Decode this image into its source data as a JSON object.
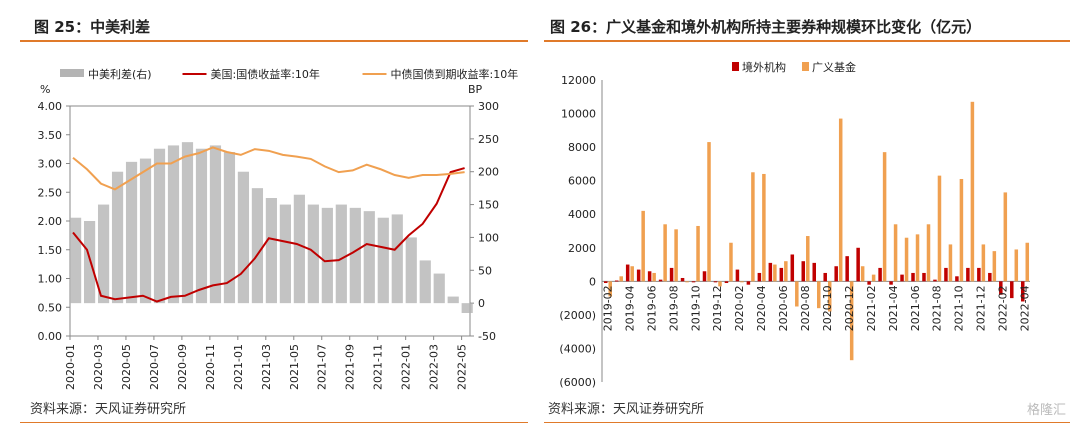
{
  "charts": [
    {
      "title": "图 25：中美利差",
      "source": "资料来源：天风证券研究所",
      "chart_data": {
        "type": "line",
        "title": "图 25：中美利差",
        "y_left_unit": "%",
        "y_right_unit": "BP",
        "y_left_ticks": [
          "0.00",
          "0.50",
          "1.00",
          "1.50",
          "2.00",
          "2.50",
          "3.00",
          "3.50",
          "4.00"
        ],
        "y_right_ticks": [
          "-50",
          "0",
          "50",
          "100",
          "150",
          "200",
          "250",
          "300"
        ],
        "x_ticks": [
          "2020-01",
          "2020-03",
          "2020-05",
          "2020-07",
          "2020-09",
          "2020-11",
          "2021-01",
          "2021-03",
          "2021-05",
          "2021-07",
          "2021-09",
          "2021-11",
          "2022-01",
          "2022-03",
          "2022-05"
        ],
        "ylim_left": [
          0,
          4
        ],
        "ylim_right": [
          -50,
          300
        ],
        "legend": "top",
        "series": [
          {
            "name": "中美利差(右)",
            "axis": "right",
            "kind": "bar",
            "color": "#b4b4b4",
            "x": [
              "2020-01",
              "2020-02",
              "2020-03",
              "2020-04",
              "2020-05",
              "2020-06",
              "2020-07",
              "2020-08",
              "2020-09",
              "2020-10",
              "2020-11",
              "2020-12",
              "2021-01",
              "2021-02",
              "2021-03",
              "2021-04",
              "2021-05",
              "2021-06",
              "2021-07",
              "2021-08",
              "2021-09",
              "2021-10",
              "2021-11",
              "2021-12",
              "2022-01",
              "2022-02",
              "2022-03",
              "2022-04",
              "2022-05"
            ],
            "values": [
              130,
              125,
              150,
              200,
              215,
              220,
              235,
              240,
              245,
              235,
              240,
              230,
              200,
              175,
              160,
              150,
              165,
              150,
              145,
              150,
              145,
              140,
              130,
              135,
              100,
              65,
              45,
              10,
              -15
            ]
          },
          {
            "name": "美国:国债收益率:10年",
            "axis": "left",
            "kind": "line",
            "color": "#c00000",
            "x": [
              "2020-01",
              "2020-02",
              "2020-03",
              "2020-04",
              "2020-05",
              "2020-06",
              "2020-07",
              "2020-08",
              "2020-09",
              "2020-10",
              "2020-11",
              "2020-12",
              "2021-01",
              "2021-02",
              "2021-03",
              "2021-04",
              "2021-05",
              "2021-06",
              "2021-07",
              "2021-08",
              "2021-09",
              "2021-10",
              "2021-11",
              "2021-12",
              "2022-01",
              "2022-02",
              "2022-03",
              "2022-04",
              "2022-05"
            ],
            "values": [
              1.8,
              1.5,
              0.7,
              0.64,
              0.67,
              0.7,
              0.6,
              0.68,
              0.7,
              0.8,
              0.88,
              0.92,
              1.08,
              1.35,
              1.7,
              1.65,
              1.6,
              1.5,
              1.3,
              1.32,
              1.45,
              1.6,
              1.55,
              1.5,
              1.75,
              1.95,
              2.3,
              2.85,
              2.92
            ]
          },
          {
            "name": "中债国债到期收益率:10年",
            "axis": "left",
            "kind": "line",
            "color": "#f0a050",
            "x": [
              "2020-01",
              "2020-02",
              "2020-03",
              "2020-04",
              "2020-05",
              "2020-06",
              "2020-07",
              "2020-08",
              "2020-09",
              "2020-10",
              "2020-11",
              "2020-12",
              "2021-01",
              "2021-02",
              "2021-03",
              "2021-04",
              "2021-05",
              "2021-06",
              "2021-07",
              "2021-08",
              "2021-09",
              "2021-10",
              "2021-11",
              "2021-12",
              "2022-01",
              "2022-02",
              "2022-03",
              "2022-04",
              "2022-05"
            ],
            "values": [
              3.1,
              2.9,
              2.65,
              2.55,
              2.7,
              2.85,
              3.0,
              3.0,
              3.12,
              3.18,
              3.28,
              3.2,
              3.15,
              3.25,
              3.22,
              3.15,
              3.12,
              3.08,
              2.95,
              2.85,
              2.88,
              2.98,
              2.9,
              2.8,
              2.75,
              2.8,
              2.8,
              2.82,
              2.85
            ]
          }
        ]
      }
    },
    {
      "title": "图 26：广义基金和境外机构所持主要券种规模环比变化（亿元）",
      "source": "资料来源：天风证券研究所",
      "chart_data": {
        "type": "bar",
        "title": "图 26：广义基金和境外机构所持主要券种规模环比变化（亿元）",
        "y_ticks": [
          "12000",
          "10000",
          "8000",
          "6000",
          "4000",
          "2000",
          "0",
          "(2000)",
          "(4000)",
          "(6000)"
        ],
        "ylim": [
          -6000,
          12000
        ],
        "legend": "top",
        "x_tick_labels": [
          "2019-02",
          "2019-04",
          "2019-06",
          "2019-08",
          "2019-10",
          "2019-12",
          "2020-02",
          "2020-04",
          "2020-06",
          "2020-08",
          "2020-10",
          "2020-12",
          "2021-02",
          "2021-04",
          "2021-06",
          "2021-08",
          "2021-10",
          "2021-12",
          "2022-02",
          "2022-04"
        ],
        "categories": [
          "2019-02",
          "2019-03",
          "2019-04",
          "2019-05",
          "2019-06",
          "2019-07",
          "2019-08",
          "2019-09",
          "2019-10",
          "2019-11",
          "2019-12",
          "2020-01",
          "2020-02",
          "2020-03",
          "2020-04",
          "2020-05",
          "2020-06",
          "2020-07",
          "2020-08",
          "2020-09",
          "2020-10",
          "2020-11",
          "2020-12",
          "2021-01",
          "2021-02",
          "2021-03",
          "2021-04",
          "2021-05",
          "2021-06",
          "2021-07",
          "2021-08",
          "2021-09",
          "2021-10",
          "2021-11",
          "2021-12",
          "2022-01",
          "2022-02",
          "2022-03",
          "2022-04"
        ],
        "series": [
          {
            "name": "境外机构",
            "color": "#c00000",
            "values": [
              -100,
              50,
              1000,
              700,
              600,
              100,
              800,
              200,
              0,
              600,
              0,
              -100,
              700,
              -200,
              500,
              1100,
              800,
              1600,
              1200,
              1100,
              500,
              900,
              1500,
              2000,
              -200,
              800,
              -200,
              400,
              500,
              500,
              100,
              800,
              300,
              800,
              800,
              500,
              -800,
              -1000,
              -1200
            ]
          },
          {
            "name": "广义基金",
            "color": "#f0a050",
            "values": [
              -900,
              300,
              900,
              4200,
              500,
              3400,
              3100,
              0,
              3300,
              8300,
              -300,
              2300,
              0,
              6500,
              6400,
              1000,
              1200,
              -1500,
              2700,
              -1600,
              -1800,
              9700,
              -4700,
              900,
              400,
              7700,
              3400,
              2600,
              2800,
              3400,
              6300,
              2200,
              6100,
              10700,
              2200,
              1800,
              5300,
              1900,
              2300
            ]
          }
        ]
      }
    }
  ],
  "watermark": "格隆汇"
}
